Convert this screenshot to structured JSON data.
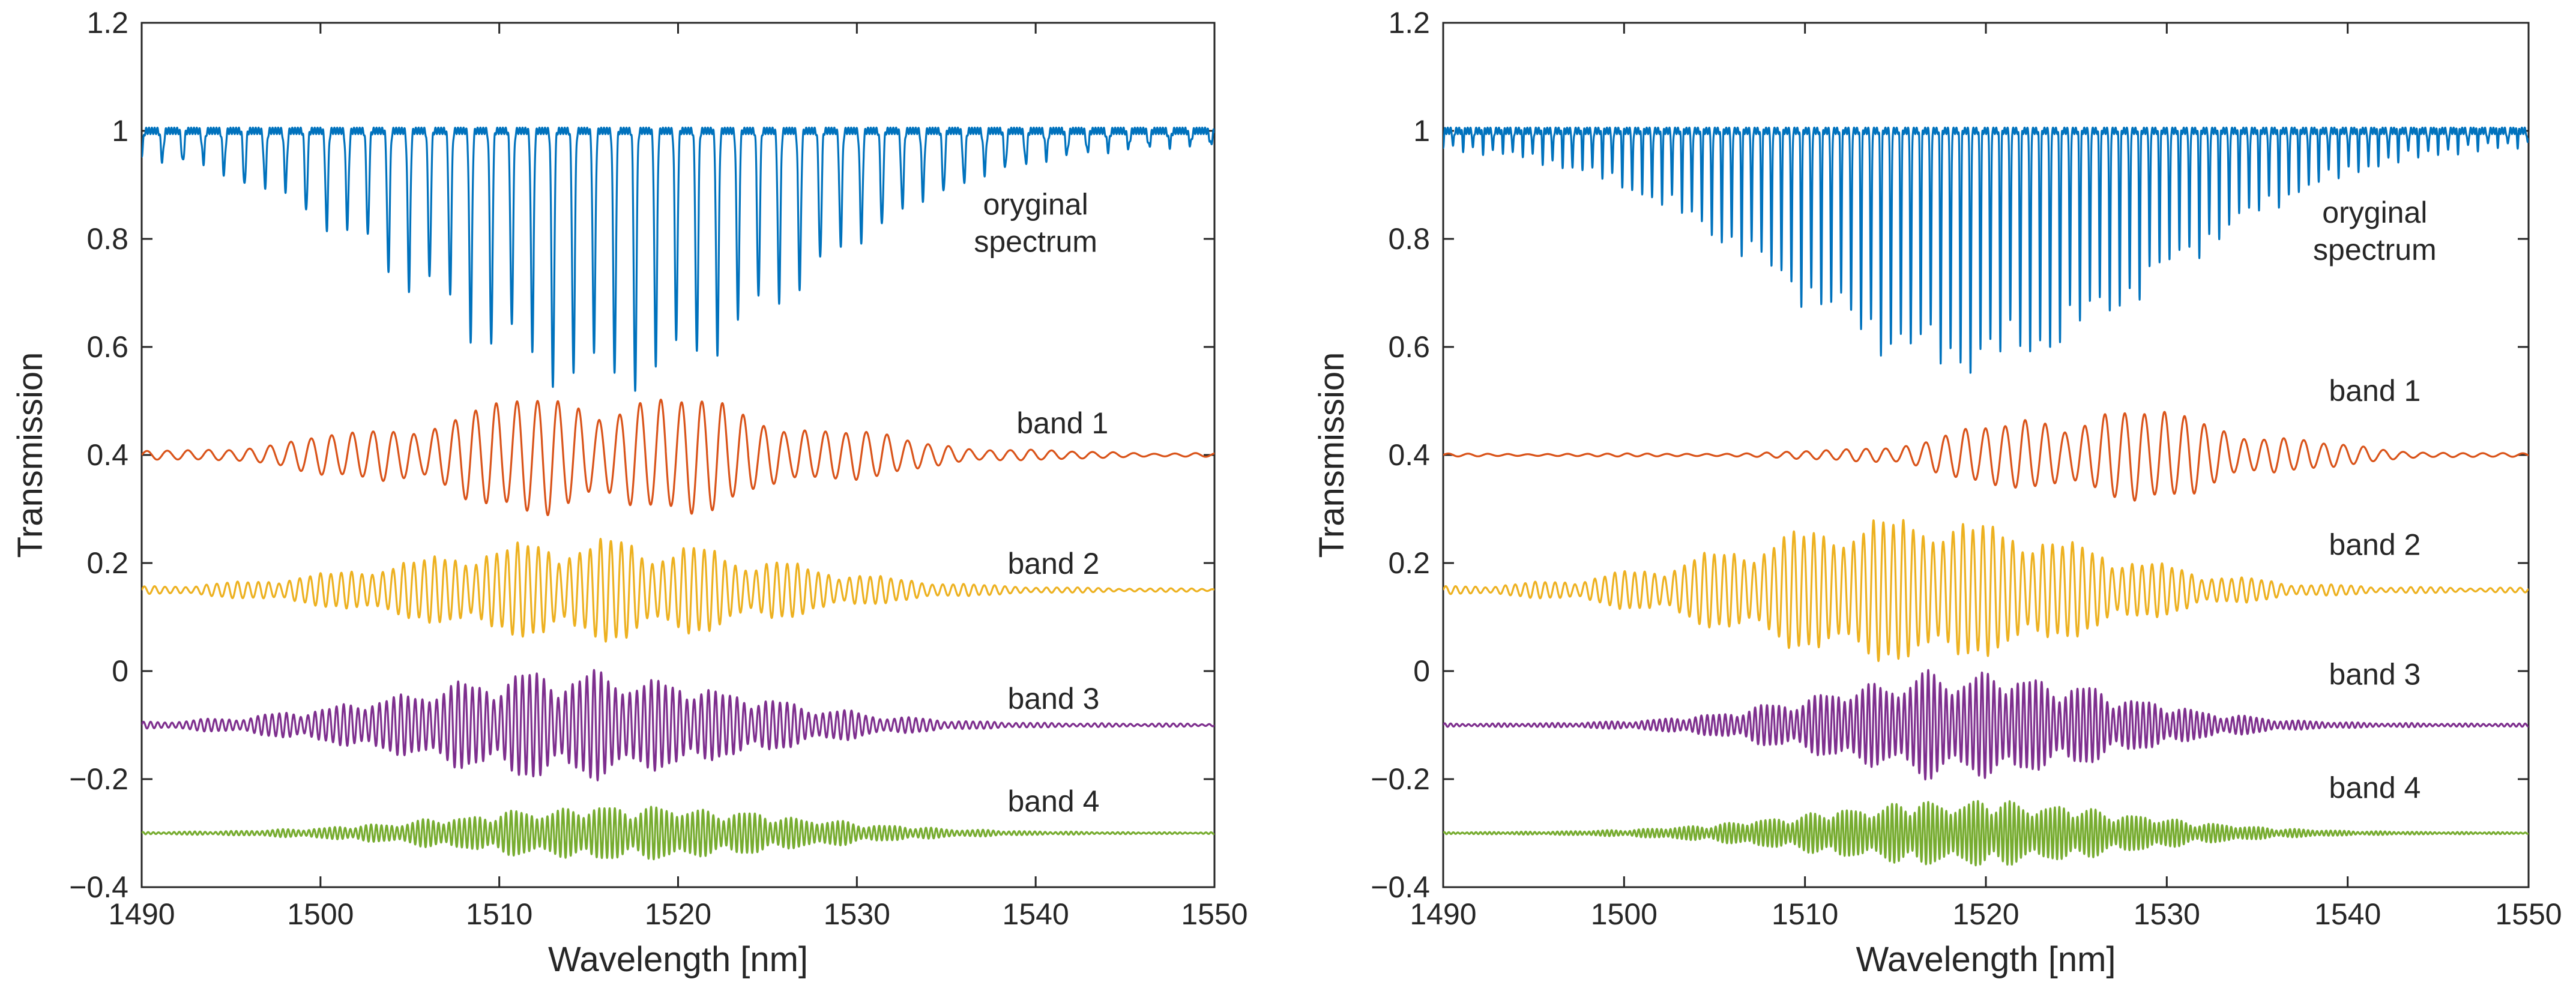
{
  "chart_data": [
    {
      "type": "line",
      "panel": "left",
      "xlabel": "Wavelength [nm]",
      "ylabel": "Transmission",
      "xlim": [
        1490,
        1550
      ],
      "ylim": [
        -0.4,
        1.2
      ],
      "xticks": [
        "1490",
        "1500",
        "1510",
        "1520",
        "1530",
        "1540",
        "1550"
      ],
      "yticks": [
        "−0.4",
        "−0.2",
        "0",
        "0.2",
        "0.4",
        "0.6",
        "0.8",
        "1",
        "1.2"
      ],
      "grid": false,
      "series": [
        {
          "name": "oryginal spectrum",
          "style": "dips",
          "color": "#0072BD",
          "baseline": 1.0,
          "amplitude": 0.45,
          "center": 1516,
          "width": 15,
          "period": 1.15,
          "x_start": 1490,
          "x_end": 1550
        },
        {
          "name": "band 1",
          "style": "osc",
          "color": "#D95319",
          "baseline": 0.4,
          "amplitude": 0.115,
          "center": 1516,
          "width": 14,
          "period": 1.15,
          "x_start": 1490,
          "x_end": 1550
        },
        {
          "name": "band 2",
          "style": "osc",
          "color": "#EDB120",
          "baseline": 0.15,
          "amplitude": 0.09,
          "center": 1515,
          "width": 14,
          "period": 0.58,
          "x_start": 1490,
          "x_end": 1550
        },
        {
          "name": "band 3",
          "style": "osc",
          "color": "#7E2F8E",
          "baseline": -0.1,
          "amplitude": 0.095,
          "center": 1514,
          "width": 13,
          "period": 0.4,
          "x_start": 1490,
          "x_end": 1550
        },
        {
          "name": "band 4",
          "style": "osc",
          "color": "#77AC30",
          "baseline": -0.3,
          "amplitude": 0.048,
          "center": 1517,
          "width": 13,
          "period": 0.29,
          "x_start": 1490,
          "x_end": 1550
        }
      ],
      "annotations": [
        {
          "lines": [
            "oryginal",
            "spectrum"
          ],
          "x": 1540,
          "y": 0.845
        },
        {
          "lines": [
            "band 1"
          ],
          "x": 1541.5,
          "y": 0.44
        },
        {
          "lines": [
            "band 2"
          ],
          "x": 1541,
          "y": 0.18
        },
        {
          "lines": [
            "band 3"
          ],
          "x": 1541,
          "y": -0.07
        },
        {
          "lines": [
            "band 4"
          ],
          "x": 1541,
          "y": -0.26
        }
      ]
    },
    {
      "type": "line",
      "panel": "right",
      "xlabel": "Wavelength [nm]",
      "ylabel": "Transmission",
      "xlim": [
        1490,
        1550
      ],
      "ylim": [
        -0.4,
        1.2
      ],
      "xticks": [
        "1490",
        "1500",
        "1510",
        "1520",
        "1530",
        "1540",
        "1550"
      ],
      "yticks": [
        "−0.4",
        "−0.2",
        "0",
        "0.2",
        "0.4",
        "0.6",
        "0.8",
        "1",
        "1.2"
      ],
      "grid": false,
      "series": [
        {
          "name": "oryginal spectrum",
          "style": "dips",
          "color": "#0072BD",
          "baseline": 1.0,
          "amplitude": 0.41,
          "center": 1519,
          "width": 15,
          "period": 0.55,
          "x_start": 1490,
          "x_end": 1550
        },
        {
          "name": "band 1",
          "style": "osc",
          "color": "#D95319",
          "baseline": 0.4,
          "amplitude": 0.085,
          "center": 1527,
          "width": 10,
          "period": 1.1,
          "x_start": 1490,
          "x_end": 1550
        },
        {
          "name": "band 2",
          "style": "osc",
          "color": "#EDB120",
          "baseline": 0.15,
          "amplitude": 0.135,
          "center": 1516,
          "width": 13,
          "period": 0.55,
          "x_start": 1490,
          "x_end": 1550
        },
        {
          "name": "band 3",
          "style": "osc",
          "color": "#7E2F8E",
          "baseline": -0.1,
          "amplitude": 0.095,
          "center": 1519,
          "width": 11,
          "period": 0.33,
          "x_start": 1490,
          "x_end": 1550
        },
        {
          "name": "band 4",
          "style": "osc",
          "color": "#77AC30",
          "baseline": -0.3,
          "amplitude": 0.058,
          "center": 1519,
          "width": 12,
          "period": 0.25,
          "x_start": 1490,
          "x_end": 1550
        }
      ],
      "annotations": [
        {
          "lines": [
            "oryginal",
            "spectrum"
          ],
          "x": 1541.5,
          "y": 0.83
        },
        {
          "lines": [
            "band 1"
          ],
          "x": 1541.5,
          "y": 0.5
        },
        {
          "lines": [
            "band 2"
          ],
          "x": 1541.5,
          "y": 0.215
        },
        {
          "lines": [
            "band 3"
          ],
          "x": 1541.5,
          "y": -0.025
        },
        {
          "lines": [
            "band 4"
          ],
          "x": 1541.5,
          "y": -0.235
        }
      ]
    }
  ]
}
